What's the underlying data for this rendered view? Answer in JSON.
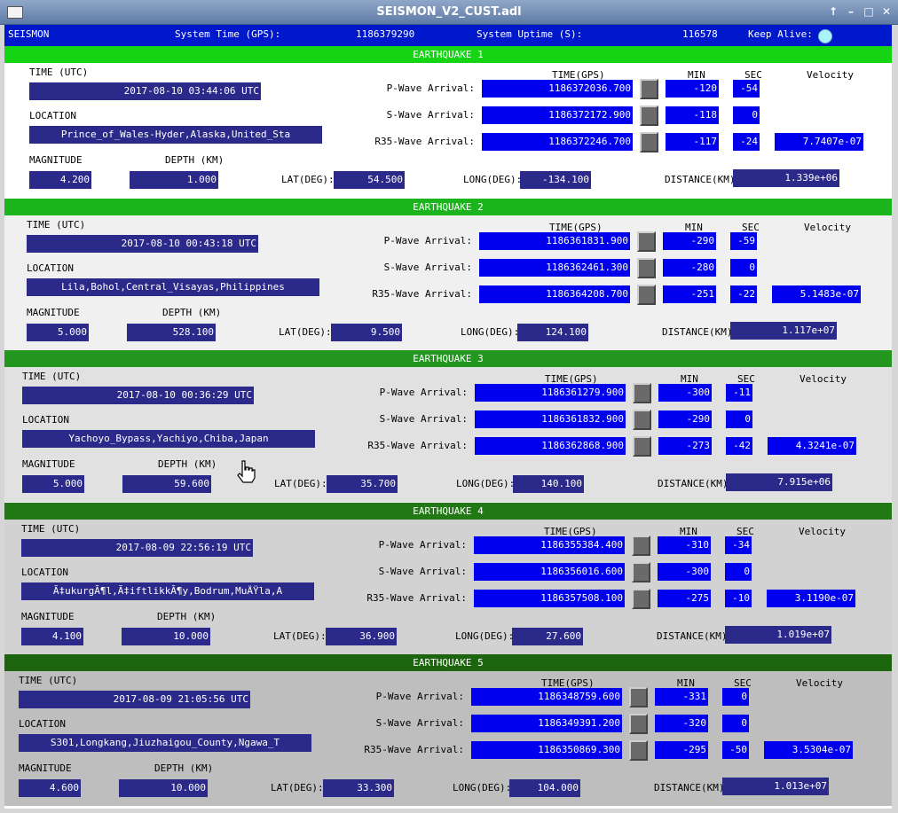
{
  "window": {
    "title": "SEISMON_V2_CUST.adl"
  },
  "topbar": {
    "app_name": "SEISMON",
    "system_time_label": "System Time (GPS):",
    "system_time_value": "1186379290",
    "uptime_label": "System Uptime (S):",
    "uptime_value": "116578",
    "keep_alive_label": "Keep Alive:",
    "keep_alive_color": "#a8f4f8"
  },
  "labels": {
    "time_utc": "TIME (UTC)",
    "location": "LOCATION",
    "magnitude": "MAGNITUDE",
    "depth": "DEPTH (KM)",
    "lat": "LAT(DEG):",
    "long": "LONG(DEG):",
    "distance": "DISTANCE(KM):",
    "time_gps": "TIME(GPS)",
    "min": "MIN",
    "sec": "SEC",
    "velocity": "Velocity",
    "p_wave": "P-Wave Arrival:",
    "s_wave": "S-Wave Arrival:",
    "r35_wave": "R35-Wave Arrival:"
  },
  "earthquakes": [
    {
      "title": "EARTHQUAKE 1",
      "header_color": "#14d414",
      "bg_color": "#ffffff",
      "time_utc": "2017-08-10 03:44:06 UTC",
      "location": "Prince_of_Wales-Hyder,Alaska,United_Sta",
      "magnitude": "4.200",
      "depth": "1.000",
      "lat": "54.500",
      "long": "-134.100",
      "distance": "1.339e+06",
      "p": {
        "gps": "1186372036.700",
        "min": "-120",
        "sec": "-54"
      },
      "s": {
        "gps": "1186372172.900",
        "min": "-118",
        "sec": "0"
      },
      "r": {
        "gps": "1186372246.700",
        "min": "-117",
        "sec": "-24",
        "velocity": "7.7407e-07"
      }
    },
    {
      "title": "EARTHQUAKE 2",
      "header_color": "#1cb41c",
      "bg_color": "#f0f0f0",
      "time_utc": "2017-08-10 00:43:18 UTC",
      "location": "Lila,Bohol,Central_Visayas,Philippines",
      "magnitude": "5.000",
      "depth": "528.100",
      "lat": "9.500",
      "long": "124.100",
      "distance": "1.117e+07",
      "p": {
        "gps": "1186361831.900",
        "min": "-290",
        "sec": "-59"
      },
      "s": {
        "gps": "1186362461.300",
        "min": "-280",
        "sec": "0"
      },
      "r": {
        "gps": "1186364208.700",
        "min": "-251",
        "sec": "-22",
        "velocity": "5.1483e-07"
      }
    },
    {
      "title": "EARTHQUAKE 3",
      "header_color": "#22961e",
      "bg_color": "#e1e1e1",
      "time_utc": "2017-08-10 00:36:29 UTC",
      "location": "Yachoyo_Bypass,Yachiyo,Chiba,Japan",
      "magnitude": "5.000",
      "depth": "59.600",
      "lat": "35.700",
      "long": "140.100",
      "distance": "7.915e+06",
      "p": {
        "gps": "1186361279.900",
        "min": "-300",
        "sec": "-11"
      },
      "s": {
        "gps": "1186361832.900",
        "min": "-290",
        "sec": "0"
      },
      "r": {
        "gps": "1186362868.900",
        "min": "-273",
        "sec": "-42",
        "velocity": "4.3241e-07"
      }
    },
    {
      "title": "EARTHQUAKE 4",
      "header_color": "#227814",
      "bg_color": "#d2d2d2",
      "time_utc": "2017-08-09 22:56:19 UTC",
      "location": "Ã‡ukurgÃ¶l,Ã‡iftlikkÃ¶y,Bodrum,MuÄŸla,A",
      "magnitude": "4.100",
      "depth": "10.000",
      "lat": "36.900",
      "long": "27.600",
      "distance": "1.019e+07",
      "p": {
        "gps": "1186355384.400",
        "min": "-310",
        "sec": "-34"
      },
      "s": {
        "gps": "1186356016.600",
        "min": "-300",
        "sec": "0"
      },
      "r": {
        "gps": "1186357508.100",
        "min": "-275",
        "sec": "-10",
        "velocity": "3.1190e-07"
      }
    },
    {
      "title": "EARTHQUAKE 5",
      "header_color": "#1c640e",
      "bg_color": "#bebebe",
      "time_utc": "2017-08-09 21:05:56 UTC",
      "location": "S301,Longkang,Jiuzhaigou_County,Ngawa_T",
      "magnitude": "4.600",
      "depth": "10.000",
      "lat": "33.300",
      "long": "104.000",
      "distance": "1.013e+07",
      "p": {
        "gps": "1186348759.600",
        "min": "-331",
        "sec": "0"
      },
      "s": {
        "gps": "1186349391.200",
        "min": "-320",
        "sec": "0"
      },
      "r": {
        "gps": "1186350869.300",
        "min": "-295",
        "sec": "-50",
        "velocity": "3.5304e-07"
      }
    }
  ]
}
